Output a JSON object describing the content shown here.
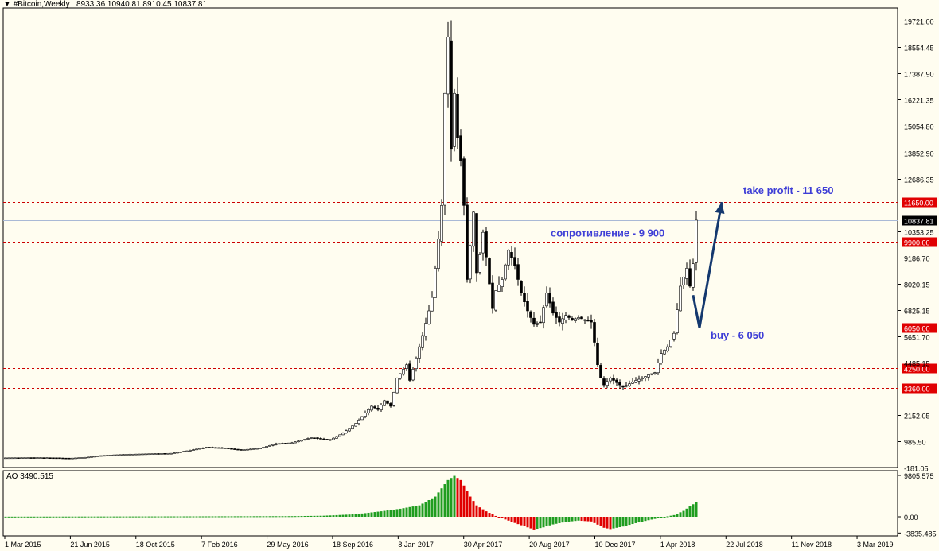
{
  "header": {
    "triangle": "▼",
    "symbol": "#Bitcoin,Weekly",
    "ohlc": "8933.36 10940.81 8910.45 10837.81"
  },
  "colors": {
    "background": "#fffdf0",
    "level_line": "#cc0000",
    "price_line": "#a9b9d6",
    "annotation_text": "#3e3ed6",
    "arrow": "#14386e",
    "ao_up": "#1f9d1f",
    "ao_down": "#e00000",
    "badge_bg": "#e00000",
    "current_badge_bg": "#000000"
  },
  "chart_data": [
    {
      "type": "candlestick",
      "title": "#Bitcoin,Weekly",
      "x_tick_labels": [
        "1 Mar 2015",
        "21 Jun 2015",
        "18 Oct 2015",
        "7 Feb 2016",
        "29 May 2016",
        "18 Sep 2016",
        "8 Jan 2017",
        "30 Apr 2017",
        "20 Aug 2017",
        "10 Dec 2017",
        "1 Apr 2018",
        "22 Jul 2018",
        "11 Nov 2018",
        "3 Mar 2019"
      ],
      "y_tick_labels": [
        "19721.00",
        "18554.45",
        "17387.90",
        "16221.35",
        "15054.80",
        "13852.90",
        "12686.35",
        "10353.25",
        "9186.70",
        "8020.15",
        "6825.15",
        "5651.70",
        "4485.15",
        "2152.05",
        "985.50",
        "-181.05"
      ],
      "ylim": [
        -181.05,
        20300
      ],
      "current_price": 10837.81,
      "current_price_label": "10837.81",
      "levels": [
        {
          "name": "take-profit",
          "value": 11650,
          "label": "11650.00"
        },
        {
          "name": "resistance",
          "value": 9900,
          "label": "9900.00"
        },
        {
          "name": "buy",
          "value": 6050,
          "label": "6050.00"
        },
        {
          "name": "support-4250",
          "value": 4250,
          "label": "4250.00"
        },
        {
          "name": "support-3360",
          "value": 3360,
          "label": "3360.00"
        }
      ],
      "annotations": {
        "take_profit": "take profit - 11 650",
        "resistance": "сопротивление - 9 900",
        "buy": "buy - 6 050"
      },
      "anchors": [
        [
          0,
          250
        ],
        [
          10,
          260
        ],
        [
          16,
          250
        ],
        [
          20,
          230
        ],
        [
          25,
          270
        ],
        [
          30,
          350
        ],
        [
          37,
          400
        ],
        [
          45,
          430
        ],
        [
          52,
          450
        ],
        [
          57,
          560
        ],
        [
          63,
          720
        ],
        [
          68,
          700
        ],
        [
          74,
          600
        ],
        [
          80,
          680
        ],
        [
          85,
          880
        ],
        [
          90,
          920
        ],
        [
          96,
          1150
        ],
        [
          102,
          1050
        ],
        [
          106,
          1350
        ],
        [
          110,
          1780
        ],
        [
          115,
          2550
        ],
        [
          117,
          2400
        ],
        [
          119,
          2800
        ],
        [
          121,
          2550
        ],
        [
          123,
          3800
        ],
        [
          126,
          4400
        ],
        [
          127,
          3700
        ],
        [
          129,
          4700
        ],
        [
          131,
          5700
        ],
        [
          133,
          6800
        ],
        [
          134,
          7400
        ],
        [
          136,
          10000
        ],
        [
          137,
          11500
        ],
        [
          138,
          16500
        ],
        [
          139,
          19000
        ],
        [
          140,
          14000
        ],
        [
          141,
          16500
        ],
        [
          142,
          14500
        ],
        [
          143,
          13500
        ],
        [
          144,
          11500
        ],
        [
          145,
          8200
        ],
        [
          146,
          9700
        ],
        [
          147,
          11200
        ],
        [
          148,
          8500
        ],
        [
          149,
          9300
        ],
        [
          150,
          10300
        ],
        [
          151,
          9200
        ],
        [
          152,
          8000
        ],
        [
          153,
          6900
        ],
        [
          154,
          7700
        ],
        [
          156,
          8200
        ],
        [
          158,
          9500
        ],
        [
          160,
          8800
        ],
        [
          162,
          7600
        ],
        [
          164,
          6800
        ],
        [
          166,
          6200
        ],
        [
          168,
          6300
        ],
        [
          170,
          7600
        ],
        [
          172,
          6700
        ],
        [
          174,
          6300
        ],
        [
          176,
          6600
        ],
        [
          178,
          6400
        ],
        [
          180,
          6500
        ],
        [
          182,
          6400
        ],
        [
          184,
          6300
        ],
        [
          185,
          5400
        ],
        [
          186,
          4400
        ],
        [
          187,
          3800
        ],
        [
          188,
          3500
        ],
        [
          190,
          3800
        ],
        [
          192,
          3600
        ],
        [
          194,
          3400
        ],
        [
          196,
          3550
        ],
        [
          198,
          3700
        ],
        [
          200,
          3800
        ],
        [
          202,
          3950
        ],
        [
          204,
          4050
        ],
        [
          206,
          4900
        ],
        [
          208,
          5200
        ],
        [
          210,
          5800
        ],
        [
          212,
          7900
        ],
        [
          214,
          8700
        ],
        [
          215,
          7900
        ],
        [
          216,
          8900
        ],
        [
          217,
          10840
        ]
      ],
      "overlay_arrow": [
        [
          216,
          7500
        ],
        [
          218,
          6050
        ],
        [
          225,
          11650
        ]
      ]
    },
    {
      "type": "bar",
      "title": "AO 3490.515",
      "indicator": "AO",
      "current_value": 3490.515,
      "y_tick_labels": [
        "9805.575",
        "0.00",
        "-3835.485"
      ],
      "ylim": [
        -3835.485,
        9805.575
      ],
      "anchors": [
        [
          0,
          30
        ],
        [
          30,
          60
        ],
        [
          60,
          90
        ],
        [
          90,
          140
        ],
        [
          100,
          250
        ],
        [
          110,
          600
        ],
        [
          118,
          1300
        ],
        [
          124,
          1900
        ],
        [
          130,
          2700
        ],
        [
          135,
          4800
        ],
        [
          139,
          8700
        ],
        [
          141,
          9700
        ],
        [
          143,
          8700
        ],
        [
          146,
          4800
        ],
        [
          148,
          2700
        ],
        [
          151,
          1300
        ],
        [
          154,
          200
        ],
        [
          158,
          -900
        ],
        [
          162,
          -2000
        ],
        [
          166,
          -3000
        ],
        [
          169,
          -2500
        ],
        [
          172,
          -1800
        ],
        [
          176,
          -1200
        ],
        [
          180,
          -900
        ],
        [
          184,
          -1100
        ],
        [
          188,
          -2600
        ],
        [
          190,
          -2900
        ],
        [
          194,
          -2300
        ],
        [
          198,
          -1500
        ],
        [
          202,
          -800
        ],
        [
          206,
          -200
        ],
        [
          210,
          400
        ],
        [
          213,
          1400
        ],
        [
          217,
          3490
        ]
      ]
    }
  ]
}
